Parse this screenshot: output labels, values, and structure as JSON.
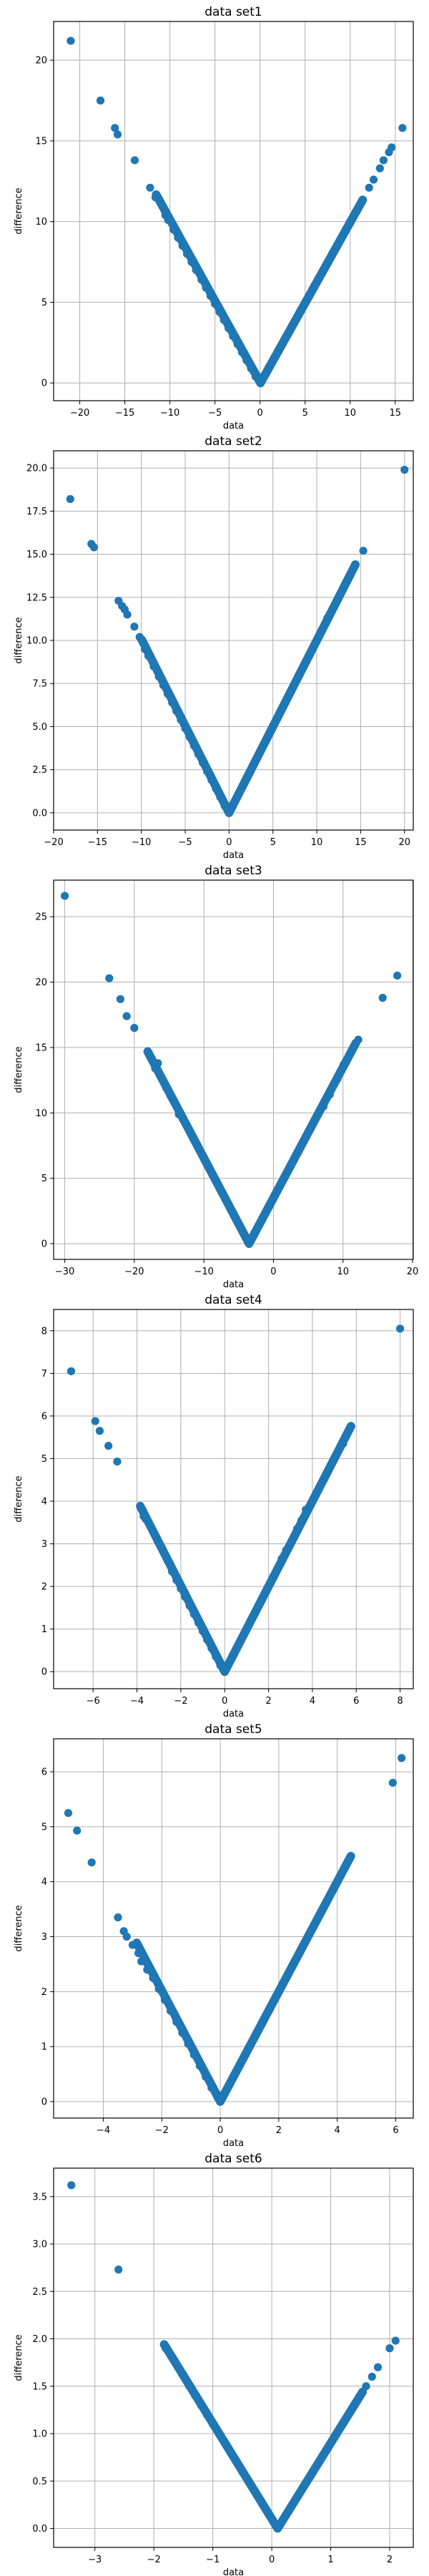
{
  "figure": {
    "marker_color": "#1f77b4",
    "grid_color": "#b0b0b0",
    "axes_color": "#000000"
  },
  "chart_data": [
    {
      "type": "scatter",
      "title": "data set1",
      "xlabel": "data",
      "ylabel": "difference",
      "xlim": [
        -22.9,
        17
      ],
      "ylim": [
        -1.1,
        22.4
      ],
      "xticks": [
        -20,
        -15,
        -10,
        -5,
        0,
        5,
        10,
        15
      ],
      "yticks": [
        0,
        5,
        10,
        15,
        20
      ],
      "grid": true,
      "vertex": 0.05,
      "points": [
        [
          -21,
          21.2
        ],
        [
          -17.7,
          17.5
        ],
        [
          -16.1,
          15.8
        ],
        [
          -15.8,
          15.4
        ],
        [
          -13.9,
          13.8
        ],
        [
          -12.2,
          12.1
        ],
        [
          -11.6,
          11.5
        ],
        [
          -10.5,
          10.4
        ],
        [
          -10.2,
          10.1
        ],
        [
          -9.6,
          9.5
        ],
        [
          -9.1,
          9.0
        ],
        [
          -8.6,
          8.5
        ],
        [
          -8.1,
          8.0
        ],
        [
          -7.6,
          7.5
        ],
        [
          -7.1,
          7.0
        ],
        [
          -6.5,
          6.4
        ],
        [
          -6.0,
          5.9
        ],
        [
          -5.5,
          5.4
        ],
        [
          -5.0,
          4.9
        ],
        [
          -4.5,
          4.4
        ],
        [
          -4.0,
          3.9
        ],
        [
          -3.5,
          3.4
        ],
        [
          -3.0,
          2.9
        ],
        [
          -2.5,
          2.4
        ],
        [
          -2.0,
          1.9
        ],
        [
          -1.5,
          1.4
        ],
        [
          -1.0,
          0.9
        ],
        [
          -0.5,
          0.4
        ],
        [
          0.0,
          0.05
        ],
        [
          0.5,
          0.5
        ],
        [
          1.0,
          1.0
        ],
        [
          1.5,
          1.5
        ],
        [
          2.0,
          2.0
        ],
        [
          2.5,
          2.5
        ],
        [
          3.0,
          3.0
        ],
        [
          3.5,
          3.5
        ],
        [
          4.0,
          4.0
        ],
        [
          4.5,
          4.5
        ],
        [
          5.0,
          5.0
        ],
        [
          5.5,
          5.5
        ],
        [
          6.0,
          6.0
        ],
        [
          6.5,
          6.5
        ],
        [
          7.0,
          7.0
        ],
        [
          7.5,
          7.5
        ],
        [
          8.0,
          8.0
        ],
        [
          8.5,
          8.5
        ],
        [
          9.0,
          9.0
        ],
        [
          9.5,
          9.5
        ],
        [
          10.0,
          10.0
        ],
        [
          10.6,
          10.6
        ],
        [
          11.3,
          11.3
        ],
        [
          12.1,
          12.1
        ],
        [
          12.6,
          12.6
        ],
        [
          13.3,
          13.3
        ],
        [
          13.7,
          13.8
        ],
        [
          14.3,
          14.3
        ],
        [
          14.6,
          14.6
        ],
        [
          15.8,
          15.8
        ]
      ]
    },
    {
      "type": "scatter",
      "title": "data set2",
      "xlabel": "data",
      "ylabel": "difference",
      "xlim": [
        -20,
        21
      ],
      "ylim": [
        -1,
        21
      ],
      "xticks": [
        -20,
        -15,
        -10,
        -5,
        0,
        5,
        10,
        15,
        20
      ],
      "yticks": [
        0.0,
        2.5,
        5.0,
        7.5,
        10.0,
        12.5,
        15.0,
        17.5,
        20.0
      ],
      "grid": true,
      "vertex": 0.0,
      "points": [
        [
          -18.1,
          18.2
        ],
        [
          -15.7,
          15.6
        ],
        [
          -15.4,
          15.4
        ],
        [
          -12.6,
          12.3
        ],
        [
          -12.2,
          12.0
        ],
        [
          -11.9,
          11.8
        ],
        [
          -11.6,
          11.5
        ],
        [
          -10.8,
          10.8
        ],
        [
          -10.2,
          10.2
        ],
        [
          -9.6,
          9.5
        ],
        [
          -9.2,
          9.1
        ],
        [
          -8.6,
          8.5
        ],
        [
          -8.0,
          7.9
        ],
        [
          -7.5,
          7.4
        ],
        [
          -7.0,
          6.9
        ],
        [
          -6.5,
          6.4
        ],
        [
          -6.0,
          5.9
        ],
        [
          -5.5,
          5.4
        ],
        [
          -5.0,
          4.9
        ],
        [
          -4.5,
          4.4
        ],
        [
          -4.0,
          3.9
        ],
        [
          -3.5,
          3.4
        ],
        [
          -3.0,
          2.9
        ],
        [
          -2.5,
          2.4
        ],
        [
          -2.0,
          1.9
        ],
        [
          -1.5,
          1.4
        ],
        [
          -1.0,
          0.9
        ],
        [
          -0.5,
          0.4
        ],
        [
          0.0,
          0.0
        ],
        [
          0.5,
          0.5
        ],
        [
          1.0,
          1.0
        ],
        [
          1.5,
          1.5
        ],
        [
          2.0,
          2.0
        ],
        [
          2.5,
          2.5
        ],
        [
          3.0,
          3.0
        ],
        [
          3.5,
          3.5
        ],
        [
          4.0,
          4.0
        ],
        [
          4.5,
          4.5
        ],
        [
          5.0,
          5.0
        ],
        [
          5.5,
          5.5
        ],
        [
          6.0,
          6.0
        ],
        [
          6.5,
          6.5
        ],
        [
          7.0,
          7.0
        ],
        [
          7.5,
          7.5
        ],
        [
          8.0,
          8.0
        ],
        [
          8.5,
          8.5
        ],
        [
          9.2,
          9.2
        ],
        [
          9.8,
          9.8
        ],
        [
          10.6,
          10.6
        ],
        [
          11.2,
          11.3
        ],
        [
          11.6,
          11.6
        ],
        [
          13.3,
          13.3
        ],
        [
          13.6,
          13.6
        ],
        [
          13.9,
          13.9
        ],
        [
          15.3,
          15.2
        ],
        [
          20.0,
          19.9
        ]
      ]
    },
    {
      "type": "scatter",
      "title": "data set3",
      "xlabel": "data",
      "ylabel": "difference",
      "xlim": [
        -31.6,
        20.1
      ],
      "ylim": [
        -1.2,
        27.8
      ],
      "xticks": [
        -30,
        -20,
        -10,
        0,
        10,
        20
      ],
      "yticks": [
        0,
        5,
        10,
        15,
        20,
        25
      ],
      "grid": true,
      "vertex": -3.5,
      "points": [
        [
          -30.0,
          26.6
        ],
        [
          -23.6,
          20.3
        ],
        [
          -22.0,
          18.7
        ],
        [
          -21.1,
          17.4
        ],
        [
          -20.0,
          16.5
        ],
        [
          -17.0,
          13.4
        ],
        [
          -16.6,
          13.8
        ],
        [
          -15.4,
          11.9
        ],
        [
          -14.8,
          11.3
        ],
        [
          -13.6,
          9.9
        ],
        [
          -13.0,
          9.5
        ],
        [
          -12.2,
          8.8
        ],
        [
          -11.5,
          8.0
        ],
        [
          -10.8,
          7.3
        ],
        [
          -10.0,
          6.5
        ],
        [
          -9.4,
          5.9
        ],
        [
          -8.8,
          5.3
        ],
        [
          -8.2,
          4.7
        ],
        [
          -7.6,
          4.1
        ],
        [
          -7.0,
          3.5
        ],
        [
          -6.5,
          3.0
        ],
        [
          -6.0,
          2.5
        ],
        [
          -5.5,
          2.0
        ],
        [
          -5.0,
          1.5
        ],
        [
          -4.5,
          1.0
        ],
        [
          -4.0,
          0.5
        ],
        [
          -3.5,
          0.1
        ],
        [
          -3.0,
          0.5
        ],
        [
          -2.5,
          1.0
        ],
        [
          -2.0,
          1.5
        ],
        [
          -1.5,
          2.0
        ],
        [
          -1.0,
          2.5
        ],
        [
          -0.5,
          3.0
        ],
        [
          0.0,
          3.5
        ],
        [
          0.6,
          4.1
        ],
        [
          1.2,
          4.7
        ],
        [
          1.8,
          5.3
        ],
        [
          2.4,
          5.9
        ],
        [
          3.0,
          6.5
        ],
        [
          3.6,
          7.1
        ],
        [
          4.2,
          7.7
        ],
        [
          4.9,
          8.4
        ],
        [
          5.6,
          9.1
        ],
        [
          6.3,
          9.8
        ],
        [
          7.2,
          10.5
        ],
        [
          8.1,
          11.4
        ],
        [
          9.2,
          12.6
        ],
        [
          10.1,
          13.7
        ],
        [
          11.0,
          14.5
        ],
        [
          12.2,
          15.6
        ],
        [
          15.7,
          18.8
        ],
        [
          17.8,
          20.5
        ]
      ]
    },
    {
      "type": "scatter",
      "title": "data set4",
      "xlabel": "data",
      "ylabel": "difference",
      "xlim": [
        -7.8,
        8.6
      ],
      "ylim": [
        -0.4,
        8.5
      ],
      "xticks": [
        -6,
        -4,
        -2,
        0,
        2,
        4,
        6,
        8
      ],
      "yticks": [
        0,
        1,
        2,
        3,
        4,
        5,
        6,
        7,
        8
      ],
      "grid": true,
      "vertex": 0.0,
      "points": [
        [
          -7.0,
          7.05
        ],
        [
          -5.9,
          5.88
        ],
        [
          -5.7,
          5.65
        ],
        [
          -5.3,
          5.3
        ],
        [
          -4.9,
          4.93
        ],
        [
          -3.7,
          3.65
        ],
        [
          -3.6,
          3.58
        ],
        [
          -2.9,
          2.95
        ],
        [
          -2.6,
          2.6
        ],
        [
          -2.4,
          2.35
        ],
        [
          -2.2,
          2.15
        ],
        [
          -2.0,
          1.95
        ],
        [
          -1.8,
          1.75
        ],
        [
          -1.6,
          1.55
        ],
        [
          -1.4,
          1.35
        ],
        [
          -1.2,
          1.15
        ],
        [
          -1.0,
          0.95
        ],
        [
          -0.8,
          0.75
        ],
        [
          -0.6,
          0.55
        ],
        [
          -0.4,
          0.35
        ],
        [
          -0.2,
          0.15
        ],
        [
          0.0,
          0.0
        ],
        [
          0.2,
          0.2
        ],
        [
          0.4,
          0.4
        ],
        [
          0.6,
          0.6
        ],
        [
          0.8,
          0.8
        ],
        [
          1.0,
          1.0
        ],
        [
          1.2,
          1.2
        ],
        [
          1.4,
          1.4
        ],
        [
          1.6,
          1.6
        ],
        [
          1.8,
          1.8
        ],
        [
          2.0,
          2.0
        ],
        [
          2.2,
          2.2
        ],
        [
          2.4,
          2.4
        ],
        [
          2.6,
          2.65
        ],
        [
          2.8,
          2.85
        ],
        [
          3.3,
          3.35
        ],
        [
          3.5,
          3.55
        ],
        [
          3.6,
          3.62
        ],
        [
          3.7,
          3.8
        ],
        [
          5.4,
          5.35
        ],
        [
          8.0,
          8.05
        ]
      ]
    },
    {
      "type": "scatter",
      "title": "data set5",
      "xlabel": "data",
      "ylabel": "difference",
      "xlim": [
        -5.7,
        6.6
      ],
      "ylim": [
        -0.3,
        6.6
      ],
      "xticks": [
        -4,
        -2,
        0,
        2,
        4,
        6
      ],
      "yticks": [
        0,
        1,
        2,
        3,
        4,
        5,
        6
      ],
      "grid": true,
      "vertex": 0.0,
      "points": [
        [
          -5.2,
          5.25
        ],
        [
          -4.9,
          4.93
        ],
        [
          -4.4,
          4.35
        ],
        [
          -3.5,
          3.35
        ],
        [
          -3.3,
          3.1
        ],
        [
          -3.2,
          3.0
        ],
        [
          -3.0,
          2.85
        ],
        [
          -2.8,
          2.7
        ],
        [
          -2.7,
          2.55
        ],
        [
          -2.5,
          2.4
        ],
        [
          -2.3,
          2.25
        ],
        [
          -2.1,
          2.05
        ],
        [
          -1.9,
          1.85
        ],
        [
          -1.7,
          1.65
        ],
        [
          -1.5,
          1.45
        ],
        [
          -1.3,
          1.25
        ],
        [
          -1.1,
          1.05
        ],
        [
          -0.9,
          0.85
        ],
        [
          -0.7,
          0.65
        ],
        [
          -0.5,
          0.45
        ],
        [
          -0.3,
          0.25
        ],
        [
          -0.1,
          0.08
        ],
        [
          0.0,
          0.0
        ],
        [
          0.1,
          0.1
        ],
        [
          0.3,
          0.3
        ],
        [
          0.5,
          0.5
        ],
        [
          0.7,
          0.7
        ],
        [
          0.9,
          0.9
        ],
        [
          1.1,
          1.1
        ],
        [
          1.3,
          1.3
        ],
        [
          1.5,
          1.5
        ],
        [
          1.7,
          1.7
        ],
        [
          1.9,
          1.9
        ],
        [
          2.1,
          2.1
        ],
        [
          2.3,
          2.3
        ],
        [
          2.5,
          2.5
        ],
        [
          2.7,
          2.7
        ],
        [
          2.9,
          2.9
        ],
        [
          3.1,
          3.1
        ],
        [
          3.3,
          3.3
        ],
        [
          3.5,
          3.5
        ],
        [
          3.7,
          3.7
        ],
        [
          3.9,
          3.9
        ],
        [
          4.1,
          4.1
        ],
        [
          4.2,
          4.2
        ],
        [
          5.9,
          5.8
        ],
        [
          6.2,
          6.25
        ]
      ]
    },
    {
      "type": "scatter",
      "title": "data set6",
      "xlabel": "data",
      "ylabel": "difference",
      "xlim": [
        -3.7,
        2.4
      ],
      "ylim": [
        -0.2,
        3.8
      ],
      "xticks": [
        -3,
        -2,
        -1,
        0,
        1,
        2
      ],
      "yticks": [
        0.0,
        0.5,
        1.0,
        1.5,
        2.0,
        2.5,
        3.0,
        3.5
      ],
      "grid": true,
      "vertex": 0.1,
      "points": [
        [
          -3.4,
          3.62
        ],
        [
          -2.6,
          2.73
        ],
        [
          -1.8,
          1.9
        ],
        [
          -1.5,
          1.62
        ],
        [
          -1.4,
          1.5
        ],
        [
          -1.3,
          1.4
        ],
        [
          -1.2,
          1.3
        ],
        [
          -1.1,
          1.2
        ],
        [
          -1.0,
          1.1
        ],
        [
          -0.9,
          1.0
        ],
        [
          -0.8,
          0.9
        ],
        [
          -0.7,
          0.8
        ],
        [
          -0.6,
          0.7
        ],
        [
          -0.5,
          0.6
        ],
        [
          -0.4,
          0.5
        ],
        [
          -0.3,
          0.4
        ],
        [
          -0.2,
          0.3
        ],
        [
          -0.1,
          0.2
        ],
        [
          0.0,
          0.1
        ],
        [
          0.1,
          0.02
        ],
        [
          0.2,
          0.1
        ],
        [
          0.3,
          0.2
        ],
        [
          0.4,
          0.3
        ],
        [
          0.5,
          0.4
        ],
        [
          0.6,
          0.5
        ],
        [
          0.7,
          0.6
        ],
        [
          0.8,
          0.7
        ],
        [
          0.9,
          0.8
        ],
        [
          1.0,
          0.9
        ],
        [
          1.1,
          1.0
        ],
        [
          1.2,
          1.1
        ],
        [
          1.3,
          1.2
        ],
        [
          1.4,
          1.3
        ],
        [
          1.5,
          1.4
        ],
        [
          1.6,
          1.5
        ],
        [
          1.7,
          1.6
        ],
        [
          1.8,
          1.7
        ],
        [
          2.0,
          1.9
        ],
        [
          2.1,
          1.98
        ]
      ]
    }
  ]
}
